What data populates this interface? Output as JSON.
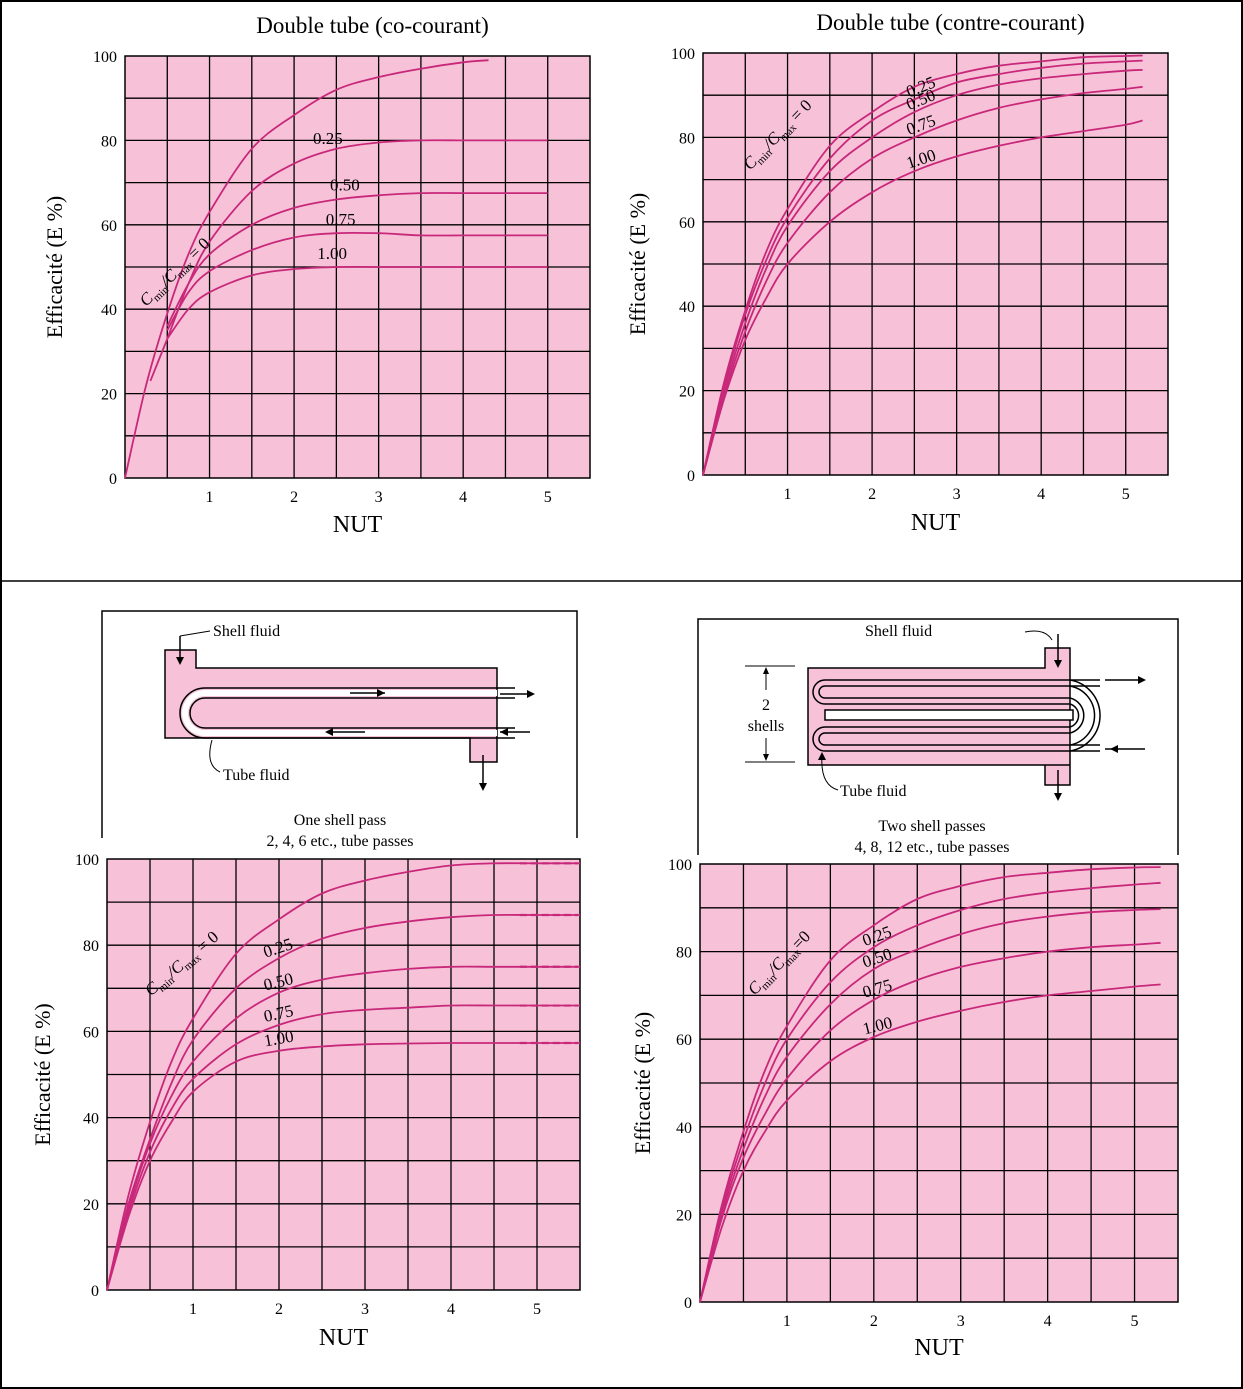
{
  "colors": {
    "plot_bg": "#f7c2d8",
    "curve": "#c8287a",
    "grid": "#000000",
    "frame": "#000000"
  },
  "chart_data": [
    {
      "type": "line",
      "title": "Double tube (co-courant)",
      "xlabel": "NUT",
      "ylabel": "Efficacité (E %)",
      "xlim": [
        0,
        5.5
      ],
      "ylim": [
        0,
        100
      ],
      "xticks": [
        "1",
        "2",
        "3",
        "4",
        "5"
      ],
      "yticks": [
        "0",
        "20",
        "40",
        "60",
        "80",
        "100"
      ],
      "grid": true,
      "label_prefix": "C",
      "label_sub1": "min",
      "label_mid": "/C",
      "label_sub2": "max",
      "label_suffix": " = 0",
      "series": [
        {
          "name": "0",
          "x": [
            0,
            0.25,
            0.5,
            0.75,
            1,
            1.5,
            2,
            2.5,
            3,
            3.5,
            4,
            4.3
          ],
          "y": [
            0,
            22,
            39,
            53,
            63,
            78,
            86,
            92,
            95,
            97,
            98.5,
            99
          ]
        },
        {
          "name": "0.25",
          "x": [
            0.3,
            0.5,
            0.75,
            1,
            1.5,
            2,
            2.5,
            3,
            3.5,
            4,
            4.5,
            5
          ],
          "y": [
            23,
            33,
            46,
            56,
            68,
            74.5,
            78,
            79.5,
            80,
            80,
            80,
            80
          ]
        },
        {
          "name": "0.50",
          "x": [
            0.5,
            0.75,
            1,
            1.5,
            2,
            2.5,
            3,
            3.5,
            4,
            4.5,
            5
          ],
          "y": [
            36,
            46,
            53,
            60,
            64,
            66,
            67,
            67.5,
            67.5,
            67.5,
            67.5
          ]
        },
        {
          "name": "0.75",
          "x": [
            0.5,
            0.75,
            1,
            1.5,
            2,
            2.5,
            3,
            3.5,
            4,
            4.5,
            5
          ],
          "y": [
            35,
            44,
            49,
            54,
            57,
            58,
            58,
            57.5,
            57.5,
            57.5,
            57.5
          ]
        },
        {
          "name": "1.00",
          "x": [
            0.5,
            0.75,
            1,
            1.5,
            2,
            2.5,
            3,
            3.5,
            4,
            4.5,
            5
          ],
          "y": [
            33,
            40,
            44,
            48,
            49.5,
            50,
            50,
            50,
            50,
            50,
            50
          ]
        }
      ]
    },
    {
      "type": "line",
      "title": "Double tube (contre-courant)",
      "xlabel": "NUT",
      "ylabel": "Efficacité (E %)",
      "xlim": [
        0,
        5.5
      ],
      "ylim": [
        0,
        100
      ],
      "xticks": [
        "1",
        "2",
        "3",
        "4",
        "5"
      ],
      "yticks": [
        "0",
        "20",
        "40",
        "60",
        "80",
        "100"
      ],
      "grid": true,
      "label_prefix": "C",
      "label_sub1": "min",
      "label_mid": "/C",
      "label_sub2": "max",
      "label_suffix": " = 0",
      "series": [
        {
          "name": "0",
          "x": [
            0,
            0.25,
            0.5,
            0.75,
            1,
            1.5,
            2,
            2.5,
            3,
            3.5,
            4,
            4.5,
            5,
            5.2
          ],
          "y": [
            0,
            22,
            39,
            53,
            63,
            78,
            86,
            92,
            95,
            97,
            98,
            99,
            99.3,
            99.4
          ]
        },
        {
          "name": "0.25",
          "x": [
            0,
            0.25,
            0.5,
            0.75,
            1,
            1.5,
            2,
            2.5,
            3,
            3.5,
            4,
            4.5,
            5,
            5.2
          ],
          "y": [
            0,
            21,
            38,
            51,
            61,
            75,
            84,
            89,
            93,
            95,
            96.5,
            97.5,
            98,
            98.2
          ]
        },
        {
          "name": "0.50",
          "x": [
            0,
            0.25,
            0.5,
            0.75,
            1,
            1.5,
            2,
            2.5,
            3,
            3.5,
            4,
            4.5,
            5,
            5.2
          ],
          "y": [
            0,
            20,
            36,
            49,
            59,
            72,
            80,
            86,
            90,
            92.5,
            94,
            95,
            95.8,
            96
          ]
        },
        {
          "name": "0.75",
          "x": [
            0,
            0.25,
            0.5,
            0.75,
            1,
            1.5,
            2,
            2.5,
            3,
            3.5,
            4,
            4.5,
            5,
            5.2
          ],
          "y": [
            0,
            19,
            34,
            46,
            55,
            67,
            75,
            80,
            84,
            87,
            89,
            90.5,
            91.5,
            92
          ]
        },
        {
          "name": "1.00",
          "x": [
            0,
            0.25,
            0.5,
            0.75,
            1,
            1.5,
            2,
            2.5,
            3,
            3.5,
            4,
            4.5,
            5,
            5.2
          ],
          "y": [
            0,
            18,
            32,
            42,
            50,
            60,
            67,
            72,
            75.5,
            78,
            80,
            81.5,
            83,
            84
          ]
        }
      ]
    },
    {
      "type": "line",
      "title": "",
      "xlabel": "NUT",
      "ylabel": "Efficacité (E %)",
      "xlim": [
        0,
        5.5
      ],
      "ylim": [
        0,
        100
      ],
      "xticks": [
        "1",
        "2",
        "3",
        "4",
        "5"
      ],
      "yticks": [
        "0",
        "20",
        "40",
        "60",
        "80",
        "100"
      ],
      "grid": true,
      "label_prefix": "C",
      "label_sub1": "min",
      "label_mid": "/C",
      "label_sub2": "max",
      "label_suffix": " = 0",
      "series": [
        {
          "name": "0",
          "x": [
            0,
            0.25,
            0.5,
            0.75,
            1,
            1.5,
            2,
            2.5,
            3,
            3.5,
            4,
            4.5,
            5,
            5.5
          ],
          "y": [
            0,
            22,
            39,
            53,
            63,
            78,
            86,
            92,
            95,
            97,
            98.5,
            99,
            99,
            99
          ],
          "dashed_from": 99
        },
        {
          "name": "0.25",
          "x": [
            0,
            0.25,
            0.5,
            0.75,
            1,
            1.5,
            2,
            2.5,
            3,
            3.5,
            4,
            4.5,
            5,
            5.5
          ],
          "y": [
            0,
            20,
            35,
            48,
            58,
            70,
            77,
            81.5,
            84,
            85.5,
            86.5,
            87,
            87,
            87
          ]
        },
        {
          "name": "0.50",
          "x": [
            0,
            0.25,
            0.5,
            0.75,
            1,
            1.5,
            2,
            2.5,
            3,
            3.5,
            4,
            4.5,
            5,
            5.5
          ],
          "y": [
            0,
            19,
            34,
            45,
            53,
            63,
            69,
            72,
            73.5,
            74.5,
            75,
            75,
            75,
            75
          ]
        },
        {
          "name": "0.75",
          "x": [
            0,
            0.25,
            0.5,
            0.75,
            1,
            1.5,
            2,
            2.5,
            3,
            3.5,
            4,
            4.5,
            5,
            5.5
          ],
          "y": [
            0,
            18,
            32,
            42,
            49,
            57,
            61.5,
            64,
            65,
            65.5,
            66,
            66,
            66,
            66
          ]
        },
        {
          "name": "1.00",
          "x": [
            0,
            0.25,
            0.5,
            0.75,
            1,
            1.5,
            2,
            2.5,
            3,
            3.5,
            4,
            4.5,
            5,
            5.5
          ],
          "y": [
            0,
            17,
            30,
            39,
            46,
            53,
            55.5,
            56.5,
            57,
            57.2,
            57.3,
            57.3,
            57.3,
            57.3
          ]
        }
      ]
    },
    {
      "type": "line",
      "title": "",
      "xlabel": "NUT",
      "ylabel": "Efficacité (E %)",
      "xlim": [
        0,
        5.5
      ],
      "ylim": [
        0,
        100
      ],
      "xticks": [
        "1",
        "2",
        "3",
        "4",
        "5"
      ],
      "yticks": [
        "0",
        "20",
        "40",
        "60",
        "80",
        "100"
      ],
      "grid": true,
      "label_prefix": "C",
      "label_sub1": "min",
      "label_mid": "/C",
      "label_sub2": "max",
      "label_suffix": "=0",
      "series": [
        {
          "name": "0",
          "x": [
            0,
            0.25,
            0.5,
            0.75,
            1,
            1.5,
            2,
            2.5,
            3,
            3.5,
            4,
            4.5,
            5,
            5.3
          ],
          "y": [
            0,
            22,
            39,
            53,
            63,
            78,
            86,
            92,
            95,
            97,
            98,
            98.8,
            99.2,
            99.3
          ]
        },
        {
          "name": "0.25",
          "x": [
            0,
            0.25,
            0.5,
            0.75,
            1,
            1.5,
            2,
            2.5,
            3,
            3.5,
            4,
            4.5,
            5,
            5.3
          ],
          "y": [
            0,
            21,
            37,
            50,
            60,
            73,
            81,
            86,
            89.5,
            92,
            93.5,
            94.5,
            95.3,
            95.7
          ]
        },
        {
          "name": "0.50",
          "x": [
            0,
            0.25,
            0.5,
            0.75,
            1,
            1.5,
            2,
            2.5,
            3,
            3.5,
            4,
            4.5,
            5,
            5.3
          ],
          "y": [
            0,
            20,
            35,
            47,
            56,
            68,
            76,
            80.5,
            84,
            86.5,
            88,
            89,
            89.5,
            89.7
          ]
        },
        {
          "name": "0.75",
          "x": [
            0,
            0.25,
            0.5,
            0.75,
            1,
            1.5,
            2,
            2.5,
            3,
            3.5,
            4,
            4.5,
            5,
            5.3
          ],
          "y": [
            0,
            19,
            33,
            43,
            51,
            62,
            69,
            73.5,
            76.5,
            78.5,
            80,
            81,
            81.6,
            82
          ]
        },
        {
          "name": "1.00",
          "x": [
            0,
            0.25,
            0.5,
            0.75,
            1,
            1.5,
            2,
            2.5,
            3,
            3.5,
            4,
            4.5,
            5,
            5.3
          ],
          "y": [
            0,
            17,
            30,
            39,
            46,
            55,
            60.5,
            64,
            66.5,
            68.5,
            70,
            71,
            72,
            72.5
          ]
        }
      ]
    }
  ],
  "diagrams": {
    "one_shell": {
      "shell_fluid": "Shell fluid",
      "tube_fluid": "Tube fluid",
      "caption1": "One shell pass",
      "caption2": "2, 4, 6 etc., tube passes"
    },
    "two_shell": {
      "shell_fluid": "Shell fluid",
      "tube_fluid": "Tube fluid",
      "count": "2",
      "shells": "shells",
      "caption1": "Two shell passes",
      "caption2": "4, 8, 12 etc., tube passes"
    }
  }
}
